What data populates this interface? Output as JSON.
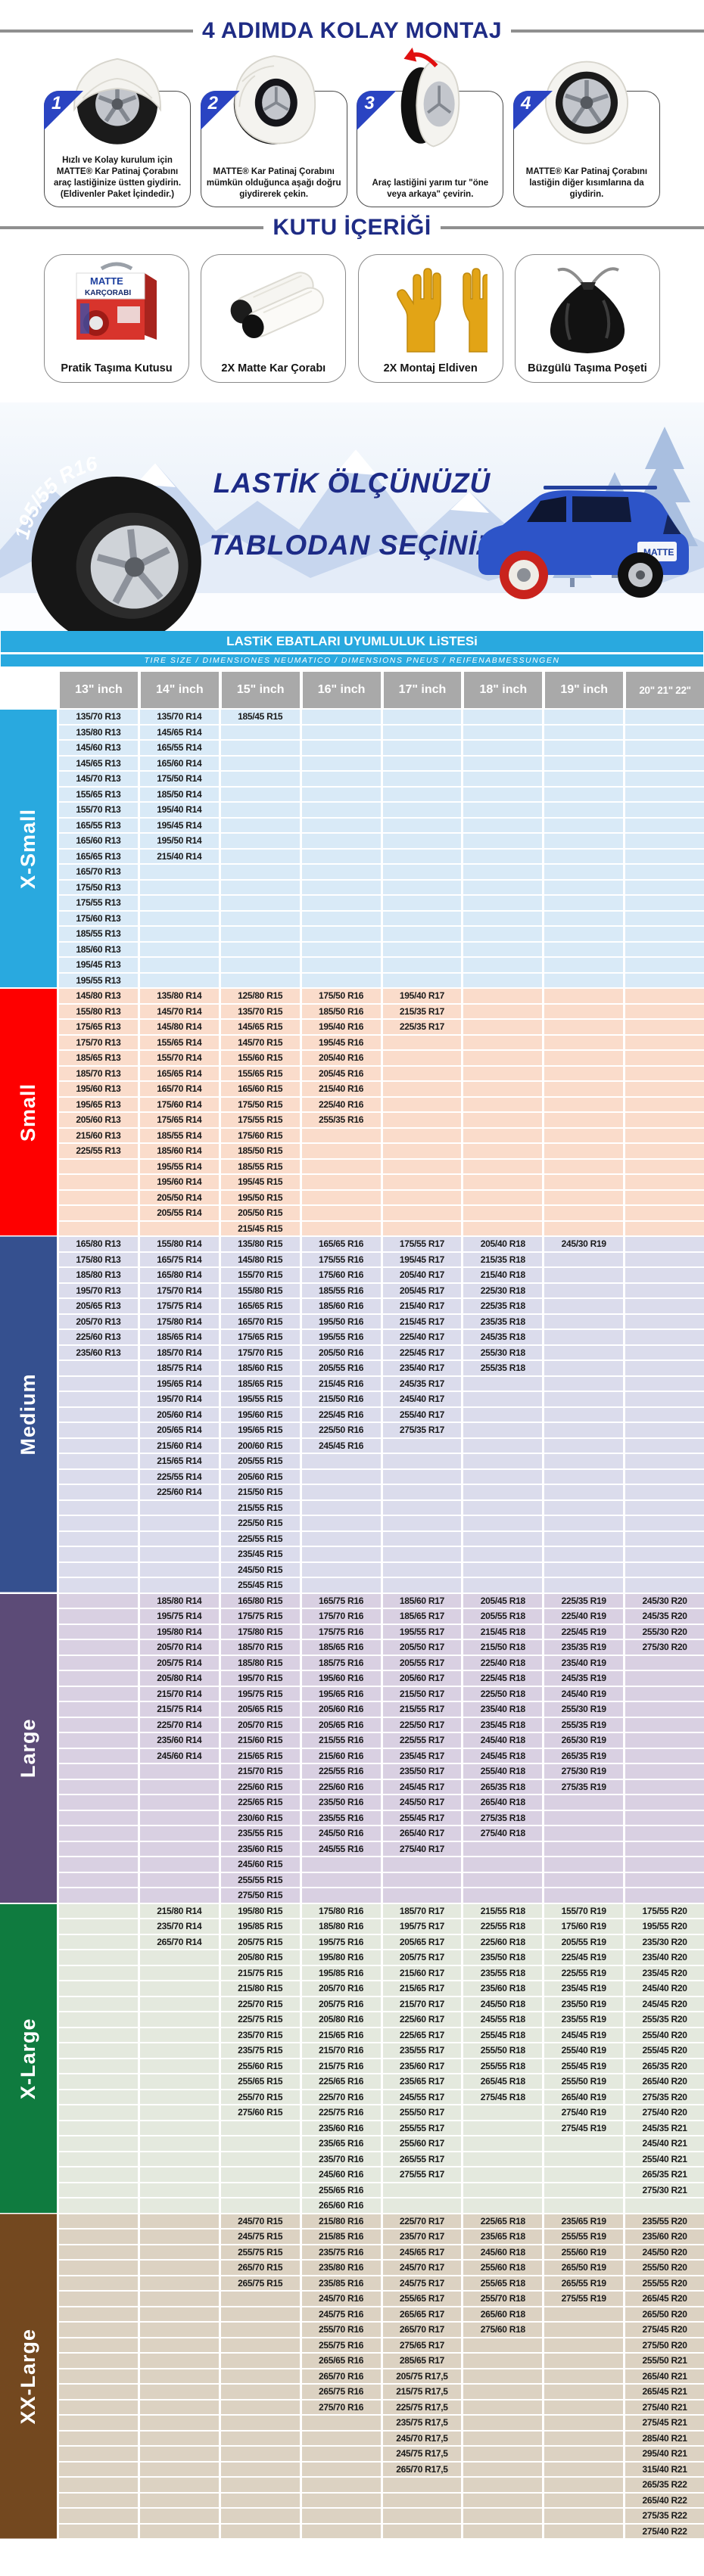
{
  "steps_section": {
    "title": "4 ADIMDA KOLAY MONTAJ",
    "steps": [
      {
        "number": "1",
        "caption": "Hızlı ve Kolay kurulum için MATTE® Kar Patinaj Çorabını araç lastiğinize üstten giydirin. (Eldivenler Paket İçindedir.)"
      },
      {
        "number": "2",
        "caption": "MATTE® Kar Patinaj Çorabını mümkün olduğunca aşağı doğru giydirerek çekin."
      },
      {
        "number": "3",
        "caption": "Araç lastiğini yarım tur \"öne veya arkaya\" çevirin."
      },
      {
        "number": "4",
        "caption": "MATTE® Kar Patinaj Çorabını lastiğin diğer kısımlarına da giydirin."
      }
    ]
  },
  "box_section": {
    "title": "KUTU İÇERİĞİ",
    "items": [
      {
        "label": "Pratik Taşıma Kutusu"
      },
      {
        "label": "2X Matte Kar Çorabı"
      },
      {
        "label": "2X Montaj Eldiven"
      },
      {
        "label": "Büzgülü Taşıma Poşeti"
      }
    ]
  },
  "banner": {
    "tire_size": "195/55 R16",
    "title_line1": "LASTİK ÖLÇÜNÜZÜ",
    "title_line2": "TABLODAN SEÇİNİZ",
    "brand": "MATTE"
  },
  "table": {
    "title": "LASTiK EBATLARI UYUMLULUK LiSTESi",
    "subtitle": "TIRE SIZE  /  DIMENSIONES NEUMATICO  /  DIMENSIONS PNEUS  /  REIFENABMESSUNGEN",
    "columns": [
      "13\" inch",
      "14\" inch",
      "15\" inch",
      "16\" inch",
      "17\" inch",
      "18\" inch",
      "19\" inch",
      "20\" 21\" 22\""
    ],
    "sections": [
      {
        "label": "X-Small",
        "label_color": "#29a9df",
        "row_color": "#d9eaf7",
        "cols": [
          [
            "135/70 R13",
            "135/80 R13",
            "145/60 R13",
            "145/65 R13",
            "145/70 R13",
            "155/65 R13",
            "155/70 R13",
            "165/55 R13",
            "165/60 R13",
            "165/65 R13",
            "165/70 R13",
            "175/50 R13",
            "175/55 R13",
            "175/60 R13",
            "185/55 R13",
            "185/60 R13",
            "195/45 R13",
            "195/55 R13"
          ],
          [
            "135/70 R14",
            "145/65 R14",
            "165/55 R14",
            "165/60 R14",
            "175/50 R14",
            "185/50 R14",
            "195/40 R14",
            "195/45 R14",
            "195/50 R14",
            "215/40 R14"
          ],
          [
            "185/45 R15"
          ],
          [],
          [],
          [],
          [],
          []
        ]
      },
      {
        "label": "Small",
        "label_color": "#fe0000",
        "row_color": "#fadccb",
        "cols": [
          [
            "145/80 R13",
            "155/80 R13",
            "175/65 R13",
            "175/70 R13",
            "185/65 R13",
            "185/70 R13",
            "195/60 R13",
            "195/65 R13",
            "205/60 R13",
            "215/60 R13",
            "225/55 R13"
          ],
          [
            "135/80 R14",
            "145/70 R14",
            "145/80 R14",
            "155/65 R14",
            "155/70 R14",
            "165/65 R14",
            "165/70 R14",
            "175/60 R14",
            "175/65 R14",
            "185/55 R14",
            "185/60 R14",
            "195/55 R14",
            "195/60 R14",
            "205/50 R14",
            "205/55 R14"
          ],
          [
            "125/80 R15",
            "135/70 R15",
            "145/65 R15",
            "145/70 R15",
            "155/60 R15",
            "155/65 R15",
            "165/60 R15",
            "175/50 R15",
            "175/55 R15",
            "175/60 R15",
            "185/50 R15",
            "185/55 R15",
            "195/45 R15",
            "195/50 R15",
            "205/50 R15",
            "215/45 R15"
          ],
          [
            "175/50 R16",
            "185/50 R16",
            "195/40 R16",
            "195/45 R16",
            "205/40 R16",
            "205/45 R16",
            "215/40 R16",
            "225/40 R16",
            "255/35 R16"
          ],
          [
            "195/40 R17",
            "215/35 R17",
            "225/35 R17"
          ],
          [],
          [],
          []
        ]
      },
      {
        "label": "Medium",
        "label_color": "#35508f",
        "row_color": "#dbdcec",
        "cols": [
          [
            "165/80 R13",
            "175/80 R13",
            "185/80 R13",
            "195/70 R13",
            "205/65 R13",
            "205/70 R13",
            "225/60 R13",
            "235/60 R13"
          ],
          [
            "155/80 R14",
            "165/75 R14",
            "165/80 R14",
            "175/70 R14",
            "175/75 R14",
            "175/80 R14",
            "185/65 R14",
            "185/70 R14",
            "185/75 R14",
            "195/65 R14",
            "195/70 R14",
            "205/60 R14",
            "205/65 R14",
            "215/60 R14",
            "215/65 R14",
            "225/55 R14",
            "225/60 R14"
          ],
          [
            "135/80 R15",
            "145/80 R15",
            "155/70 R15",
            "155/80 R15",
            "165/65 R15",
            "165/70 R15",
            "175/65 R15",
            "175/70 R15",
            "185/60 R15",
            "185/65 R15",
            "195/55 R15",
            "195/60 R15",
            "195/65 R15",
            "200/60 R15",
            "205/55 R15",
            "205/60 R15",
            "215/50 R15",
            "215/55 R15",
            "225/50 R15",
            "225/55 R15",
            "235/45 R15",
            "245/50 R15",
            "255/45 R15"
          ],
          [
            "165/65 R16",
            "175/55 R16",
            "175/60 R16",
            "185/55 R16",
            "185/60 R16",
            "195/50 R16",
            "195/55 R16",
            "205/50 R16",
            "205/55 R16",
            "215/45 R16",
            "215/50 R16",
            "225/45 R16",
            "225/50 R16",
            "245/45 R16"
          ],
          [
            "175/55 R17",
            "195/45 R17",
            "205/40 R17",
            "205/45 R17",
            "215/40 R17",
            "215/45 R17",
            "225/40 R17",
            "225/45 R17",
            "235/40 R17",
            "245/35 R17",
            "245/40 R17",
            "255/40 R17",
            "275/35 R17"
          ],
          [
            "205/40 R18",
            "215/35 R18",
            "215/40 R18",
            "225/30 R18",
            "225/35 R18",
            "235/35 R18",
            "245/35 R18",
            "255/30 R18",
            "255/35 R18"
          ],
          [
            "245/30 R19"
          ],
          []
        ]
      },
      {
        "label": "Large",
        "label_color": "#5c4b77",
        "row_color": "#d9d0e2",
        "cols": [
          [],
          [
            "185/80 R14",
            "195/75 R14",
            "195/80 R14",
            "205/70 R14",
            "205/75 R14",
            "205/80 R14",
            "215/70 R14",
            "215/75 R14",
            "225/70 R14",
            "235/60 R14",
            "245/60 R14"
          ],
          [
            "165/80 R15",
            "175/75 R15",
            "175/80 R15",
            "185/70 R15",
            "185/80 R15",
            "195/70 R15",
            "195/75 R15",
            "205/65 R15",
            "205/70 R15",
            "215/60 R15",
            "215/65 R15",
            "215/70 R15",
            "225/60 R15",
            "225/65 R15",
            "230/60 R15",
            "235/55 R15",
            "235/60 R15",
            "245/60 R15",
            "255/55 R15",
            "275/50 R15"
          ],
          [
            "165/75 R16",
            "175/70 R16",
            "175/75 R16",
            "185/65 R16",
            "185/75 R16",
            "195/60 R16",
            "195/65 R16",
            "205/60 R16",
            "205/65 R16",
            "215/55 R16",
            "215/60 R16",
            "225/55 R16",
            "225/60 R16",
            "235/50 R16",
            "235/55 R16",
            "245/50 R16",
            "245/55 R16"
          ],
          [
            "185/60 R17",
            "185/65 R17",
            "195/55 R17",
            "205/50 R17",
            "205/55 R17",
            "205/60 R17",
            "215/50 R17",
            "215/55 R17",
            "225/50 R17",
            "225/55 R17",
            "235/45 R17",
            "235/50 R17",
            "245/45 R17",
            "245/50 R17",
            "255/45 R17",
            "265/40 R17",
            "275/40 R17"
          ],
          [
            "205/45 R18",
            "205/55 R18",
            "215/45 R18",
            "215/50 R18",
            "225/40 R18",
            "225/45 R18",
            "225/50 R18",
            "235/40 R18",
            "235/45 R18",
            "245/40 R18",
            "245/45 R18",
            "255/40 R18",
            "265/35 R18",
            "265/40 R18",
            "275/35 R18",
            "275/40 R18"
          ],
          [
            "225/35 R19",
            "225/40 R19",
            "225/45 R19",
            "235/35 R19",
            "235/40 R19",
            "245/35 R19",
            "245/40 R19",
            "255/30 R19",
            "255/35 R19",
            "265/30 R19",
            "265/35 R19",
            "275/30 R19",
            "275/35 R19"
          ],
          [
            "245/30 R20",
            "245/35 R20",
            "255/30 R20",
            "275/30 R20"
          ]
        ]
      },
      {
        "label": "X-Large",
        "label_color": "#0f7b3f",
        "row_color": "#e4e9de",
        "cols": [
          [],
          [
            "215/80 R14",
            "235/70 R14",
            "265/70 R14"
          ],
          [
            "195/80 R15",
            "195/85 R15",
            "205/75 R15",
            "205/80 R15",
            "215/75 R15",
            "215/80 R15",
            "225/70 R15",
            "225/75 R15",
            "235/70 R15",
            "235/75 R15",
            "255/60 R15",
            "255/65 R15",
            "255/70 R15",
            "275/60 R15"
          ],
          [
            "175/80 R16",
            "185/80 R16",
            "195/75 R16",
            "195/80 R16",
            "195/85 R16",
            "205/70 R16",
            "205/75 R16",
            "205/80 R16",
            "215/65 R16",
            "215/70 R16",
            "215/75 R16",
            "225/65 R16",
            "225/70 R16",
            "225/75 R16",
            "235/60 R16",
            "235/65 R16",
            "235/70 R16",
            "245/60 R16",
            "255/65 R16",
            "265/60 R16"
          ],
          [
            "185/70 R17",
            "195/75 R17",
            "205/65 R17",
            "205/75 R17",
            "215/60 R17",
            "215/65 R17",
            "215/70 R17",
            "225/60 R17",
            "225/65 R17",
            "235/55 R17",
            "235/60 R17",
            "235/65 R17",
            "245/55 R17",
            "255/50 R17",
            "255/55 R17",
            "255/60 R17",
            "265/55 R17",
            "275/55 R17"
          ],
          [
            "215/55 R18",
            "225/55 R18",
            "225/60 R18",
            "235/50 R18",
            "235/55 R18",
            "235/60 R18",
            "245/50 R18",
            "245/55 R18",
            "255/45 R18",
            "255/50 R18",
            "255/55 R18",
            "265/45 R18",
            "275/45 R18"
          ],
          [
            "155/70 R19",
            "175/60 R19",
            "205/55 R19",
            "225/45 R19",
            "225/55 R19",
            "235/45 R19",
            "235/50 R19",
            "235/55 R19",
            "245/45 R19",
            "255/40 R19",
            "255/45 R19",
            "255/50 R19",
            "265/40 R19",
            "275/40 R19",
            "275/45 R19"
          ],
          [
            "175/55 R20",
            "195/55 R20",
            "235/30 R20",
            "235/40 R20",
            "235/45 R20",
            "245/40 R20",
            "245/45 R20",
            "255/35 R20",
            "255/40 R20",
            "255/45 R20",
            "265/35 R20",
            "265/40 R20",
            "275/35 R20",
            "275/40 R20",
            "245/35 R21",
            "245/40 R21",
            "255/40 R21",
            "265/35 R21",
            "275/30 R21"
          ]
        ]
      },
      {
        "label": "XX-Large",
        "label_color": "#73481f",
        "row_color": "#dcd2c2",
        "cols": [
          [],
          [],
          [
            "245/70 R15",
            "245/75 R15",
            "255/75 R15",
            "265/70 R15",
            "265/75 R15"
          ],
          [
            "215/80 R16",
            "215/85 R16",
            "235/75 R16",
            "235/80 R16",
            "235/85 R16",
            "245/70 R16",
            "245/75 R16",
            "255/70 R16",
            "255/75 R16",
            "265/65 R16",
            "265/70 R16",
            "265/75 R16",
            "275/70 R16"
          ],
          [
            "225/70 R17",
            "235/70 R17",
            "245/65 R17",
            "245/70 R17",
            "245/75 R17",
            "255/65 R17",
            "265/65 R17",
            "265/70 R17",
            "275/65 R17",
            "285/65 R17",
            "205/75 R17,5",
            "215/75 R17,5",
            "225/75 R17,5",
            "235/75 R17,5",
            "245/70 R17,5",
            "245/75 R17,5",
            "265/70 R17,5"
          ],
          [
            "225/65 R18",
            "235/65 R18",
            "245/60 R18",
            "255/60 R18",
            "255/65 R18",
            "255/70 R18",
            "265/60 R18",
            "275/60 R18"
          ],
          [
            "235/65 R19",
            "255/55 R19",
            "255/60 R19",
            "265/50 R19",
            "265/55 R19",
            "275/55 R19"
          ],
          [
            "235/55 R20",
            "235/60 R20",
            "245/50 R20",
            "255/50 R20",
            "255/55 R20",
            "265/45 R20",
            "265/50 R20",
            "275/45 R20",
            "275/50 R20",
            "255/50 R21",
            "265/40 R21",
            "265/45 R21",
            "275/40 R21",
            "275/45 R21",
            "285/40 R21",
            "295/40 R21",
            "315/40 R21",
            "265/35 R22",
            "265/40 R22",
            "275/35 R22",
            "275/40 R22"
          ]
        ]
      }
    ]
  }
}
